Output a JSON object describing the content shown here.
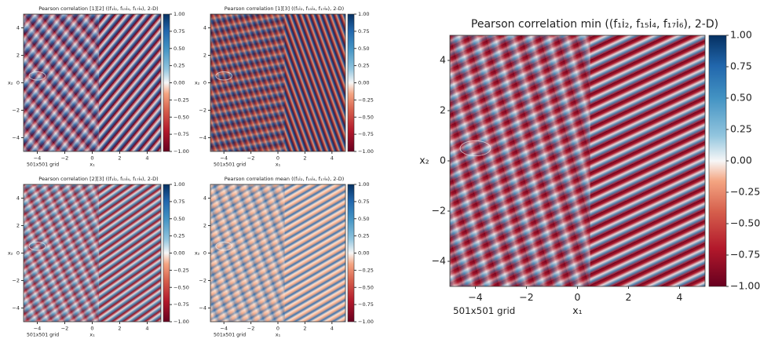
{
  "chart_data": [
    {
      "type": "heatmap",
      "title": "Pearson correlation [1][2] ((f₁i₂, f₁₅i₄, f₁₇i₆), 2-D)",
      "xlabel": "x₁",
      "ylabel": "x₂",
      "annotation": "501x501 grid",
      "xlim": [
        -5,
        5
      ],
      "ylim": [
        -5,
        5
      ],
      "xticks": [
        {
          "value": -4,
          "label": "−4"
        },
        {
          "value": -2,
          "label": "−2"
        },
        0,
        2,
        4
      ],
      "yticks": [
        {
          "value": -4,
          "label": "−4"
        },
        {
          "value": -2,
          "label": "−2"
        },
        0,
        2,
        4
      ],
      "clim": [
        -1,
        1
      ],
      "cticks": [
        {
          "value": -1,
          "label": "−1.00"
        },
        {
          "value": -0.75,
          "label": "−0.75"
        },
        {
          "value": -0.5,
          "label": "−0.50"
        },
        {
          "value": -0.25,
          "label": "−0.25"
        },
        {
          "value": 0,
          "label": "0.00"
        },
        {
          "value": 0.25,
          "label": "0.25"
        },
        {
          "value": 0.5,
          "label": "0.50"
        },
        {
          "value": 0.75,
          "label": "0.75"
        },
        {
          "value": 1,
          "label": "1.00"
        }
      ]
    },
    {
      "type": "heatmap",
      "title": "Pearson correlation [1][3] ((f₁i₂, f₁₅i₄, f₁₇i₆), 2-D)",
      "xlabel": "x₁",
      "ylabel": "x₂",
      "annotation": "501x501 grid",
      "xlim": [
        -5,
        5
      ],
      "ylim": [
        -5,
        5
      ],
      "xticks": [
        {
          "value": -4,
          "label": "−4"
        },
        {
          "value": -2,
          "label": "−2"
        },
        0,
        2,
        4
      ],
      "yticks": [
        {
          "value": -4,
          "label": "−4"
        },
        {
          "value": -2,
          "label": "−2"
        },
        0,
        2,
        4
      ],
      "clim": [
        -1,
        1
      ],
      "cticks": [
        {
          "value": -1,
          "label": "−1.00"
        },
        {
          "value": -0.75,
          "label": "−0.75"
        },
        {
          "value": -0.5,
          "label": "−0.50"
        },
        {
          "value": -0.25,
          "label": "−0.25"
        },
        {
          "value": 0,
          "label": "0.00"
        },
        {
          "value": 0.25,
          "label": "0.25"
        },
        {
          "value": 0.5,
          "label": "0.50"
        },
        {
          "value": 0.75,
          "label": "0.75"
        },
        {
          "value": 1,
          "label": "1.00"
        }
      ]
    },
    {
      "type": "heatmap",
      "title": "Pearson correlation [2][3] ((f₁i₂, f₁₅i₄, f₁₇i₆), 2-D)",
      "xlabel": "x₁",
      "ylabel": "x₂",
      "annotation": "501x501 grid",
      "xlim": [
        -5,
        5
      ],
      "ylim": [
        -5,
        5
      ],
      "xticks": [
        {
          "value": -4,
          "label": "−4"
        },
        {
          "value": -2,
          "label": "−2"
        },
        0,
        2,
        4
      ],
      "yticks": [
        {
          "value": -4,
          "label": "−4"
        },
        {
          "value": -2,
          "label": "−2"
        },
        0,
        2,
        4
      ],
      "clim": [
        -1,
        1
      ],
      "cticks": [
        {
          "value": -1,
          "label": "−1.00"
        },
        {
          "value": -0.75,
          "label": "−0.75"
        },
        {
          "value": -0.5,
          "label": "−0.50"
        },
        {
          "value": -0.25,
          "label": "−0.25"
        },
        {
          "value": 0,
          "label": "0.00"
        },
        {
          "value": 0.25,
          "label": "0.25"
        },
        {
          "value": 0.5,
          "label": "0.50"
        },
        {
          "value": 0.75,
          "label": "0.75"
        },
        {
          "value": 1,
          "label": "1.00"
        }
      ]
    },
    {
      "type": "heatmap",
      "title": "Pearson correlation mean ((f₁i₂, f₁₅i₄, f₁₇i₆), 2-D)",
      "xlabel": "x₁",
      "ylabel": "x₂",
      "annotation": "501x501 grid",
      "xlim": [
        -5,
        5
      ],
      "ylim": [
        -5,
        5
      ],
      "xticks": [
        {
          "value": -4,
          "label": "−4"
        },
        {
          "value": -2,
          "label": "−2"
        },
        0,
        2,
        4
      ],
      "yticks": [
        {
          "value": -4,
          "label": "−4"
        },
        {
          "value": -2,
          "label": "−2"
        },
        0,
        2,
        4
      ],
      "clim": [
        -1,
        1
      ],
      "cticks": [
        {
          "value": -1,
          "label": "−1.00"
        },
        {
          "value": -0.75,
          "label": "−0.75"
        },
        {
          "value": -0.5,
          "label": "−0.50"
        },
        {
          "value": -0.25,
          "label": "−0.25"
        },
        {
          "value": 0,
          "label": "0.00"
        },
        {
          "value": 0.25,
          "label": "0.25"
        },
        {
          "value": 0.5,
          "label": "0.50"
        },
        {
          "value": 0.75,
          "label": "0.75"
        },
        {
          "value": 1,
          "label": "1.00"
        }
      ]
    },
    {
      "type": "heatmap",
      "title": "Pearson correlation min ((f₁i₂, f₁₅i₄, f₁₇i₆), 2-D)",
      "xlabel": "x₁",
      "ylabel": "x₂",
      "annotation": "501x501 grid",
      "xlim": [
        -5,
        5
      ],
      "ylim": [
        -5,
        5
      ],
      "xticks": [
        {
          "value": -4,
          "label": "−4"
        },
        {
          "value": -2,
          "label": "−2"
        },
        0,
        2,
        4
      ],
      "yticks": [
        {
          "value": -4,
          "label": "−4"
        },
        {
          "value": -2,
          "label": "−2"
        },
        0,
        2,
        4
      ],
      "clim": [
        -1,
        1
      ],
      "cticks": [
        {
          "value": -1,
          "label": "−1.00"
        },
        {
          "value": -0.75,
          "label": "−0.75"
        },
        {
          "value": -0.5,
          "label": "−0.50"
        },
        {
          "value": -0.25,
          "label": "−0.25"
        },
        {
          "value": 0,
          "label": "0.00"
        },
        {
          "value": 0.25,
          "label": "0.25"
        },
        {
          "value": 0.5,
          "label": "0.50"
        },
        {
          "value": 0.75,
          "label": "0.75"
        },
        {
          "value": 1,
          "label": "1.00"
        }
      ]
    }
  ]
}
